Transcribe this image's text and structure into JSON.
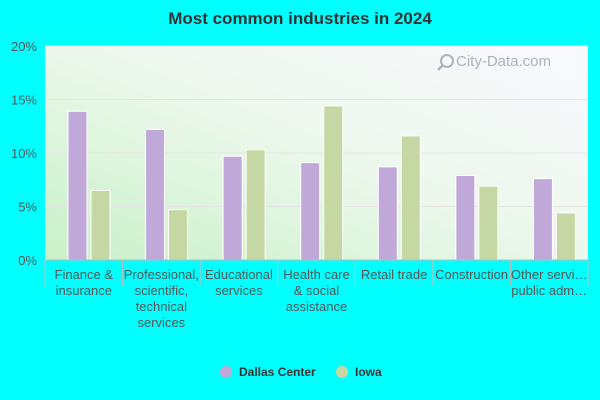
{
  "chart_data": {
    "type": "bar",
    "title": "Most common industries in 2024",
    "xlabel": "",
    "ylabel": "",
    "ylim": [
      0,
      20
    ],
    "yticks": [
      "0%",
      "5%",
      "10%",
      "15%",
      "20%"
    ],
    "ytick_values": [
      0,
      5,
      10,
      15,
      20
    ],
    "grid": true,
    "legend_position": "bottom",
    "categories": [
      [
        "Finance &",
        "insurance"
      ],
      [
        "Professional,",
        "scientific,",
        "technical",
        "services"
      ],
      [
        "Educational",
        "services"
      ],
      [
        "Health care",
        "& social",
        "assistance"
      ],
      [
        "Retail trade"
      ],
      [
        "Construction"
      ],
      [
        "Other servi…",
        "public adm…"
      ]
    ],
    "series": [
      {
        "name": "Dallas Center",
        "color": "#c0a8d8",
        "values": [
          13.9,
          12.2,
          9.7,
          9.1,
          8.7,
          7.9,
          7.6
        ]
      },
      {
        "name": "Iowa",
        "color": "#c5d8a4",
        "values": [
          6.5,
          4.7,
          10.3,
          14.4,
          11.6,
          6.9,
          4.4
        ]
      }
    ]
  },
  "watermark": {
    "text": "City-Data.com",
    "icon": "magnifier-icon"
  },
  "colors": {
    "page_background": "#00ffff",
    "grid_line": "#e4e4e4",
    "axis_line": "#bbbbbb"
  }
}
